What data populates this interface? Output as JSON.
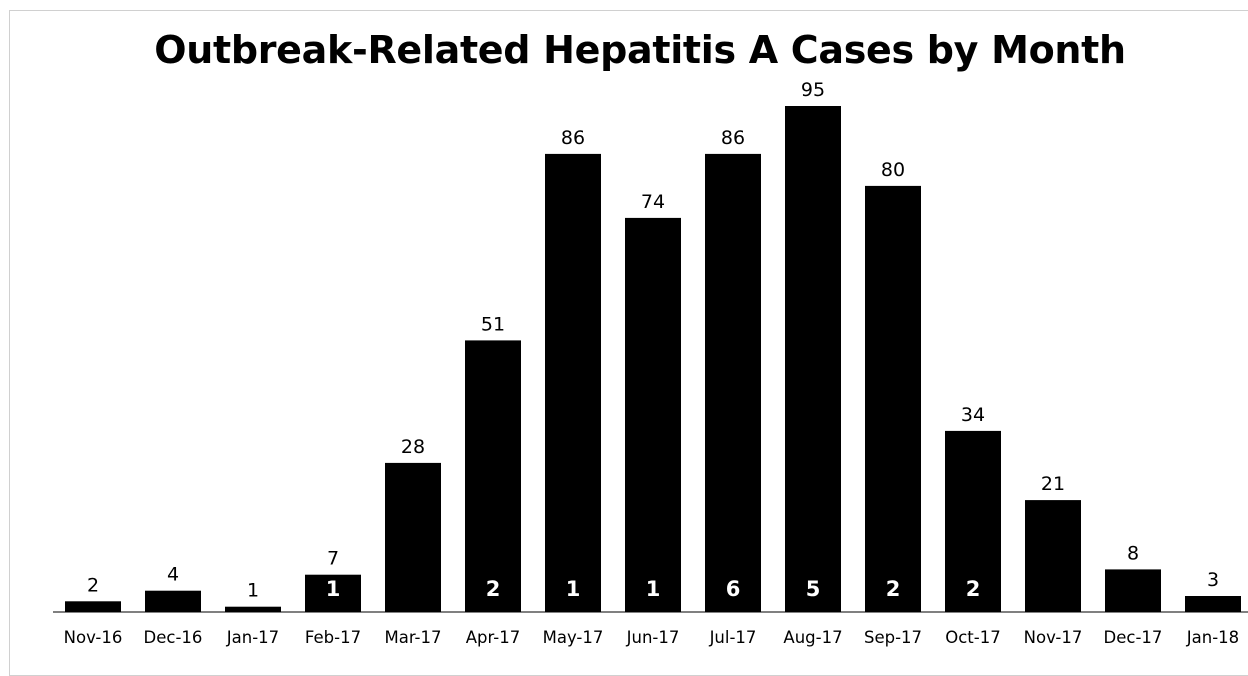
{
  "chart_data": {
    "type": "bar",
    "title": "Outbreak-Related Hepatitis A Cases by Month",
    "xlabel": "",
    "ylabel": "",
    "categories": [
      "Nov-16",
      "Dec-16",
      "Jan-17",
      "Feb-17",
      "Mar-17",
      "Apr-17",
      "May-17",
      "Jun-17",
      "Jul-17",
      "Aug-17",
      "Sep-17",
      "Oct-17",
      "Nov-17",
      "Dec-17",
      "Jan-18"
    ],
    "values": [
      2,
      4,
      1,
      7,
      28,
      51,
      86,
      74,
      86,
      95,
      80,
      34,
      21,
      8,
      3
    ],
    "inner_labels": [
      "",
      "",
      "",
      "1",
      "",
      "2",
      "1",
      "1",
      "6",
      "5",
      "2",
      "2",
      "",
      "",
      ""
    ],
    "ylim": [
      0,
      95
    ],
    "grid": false,
    "legend": "none",
    "colors": {
      "bar": "#000000",
      "value_label": "#000000",
      "inner_label": "#ffffff"
    }
  }
}
